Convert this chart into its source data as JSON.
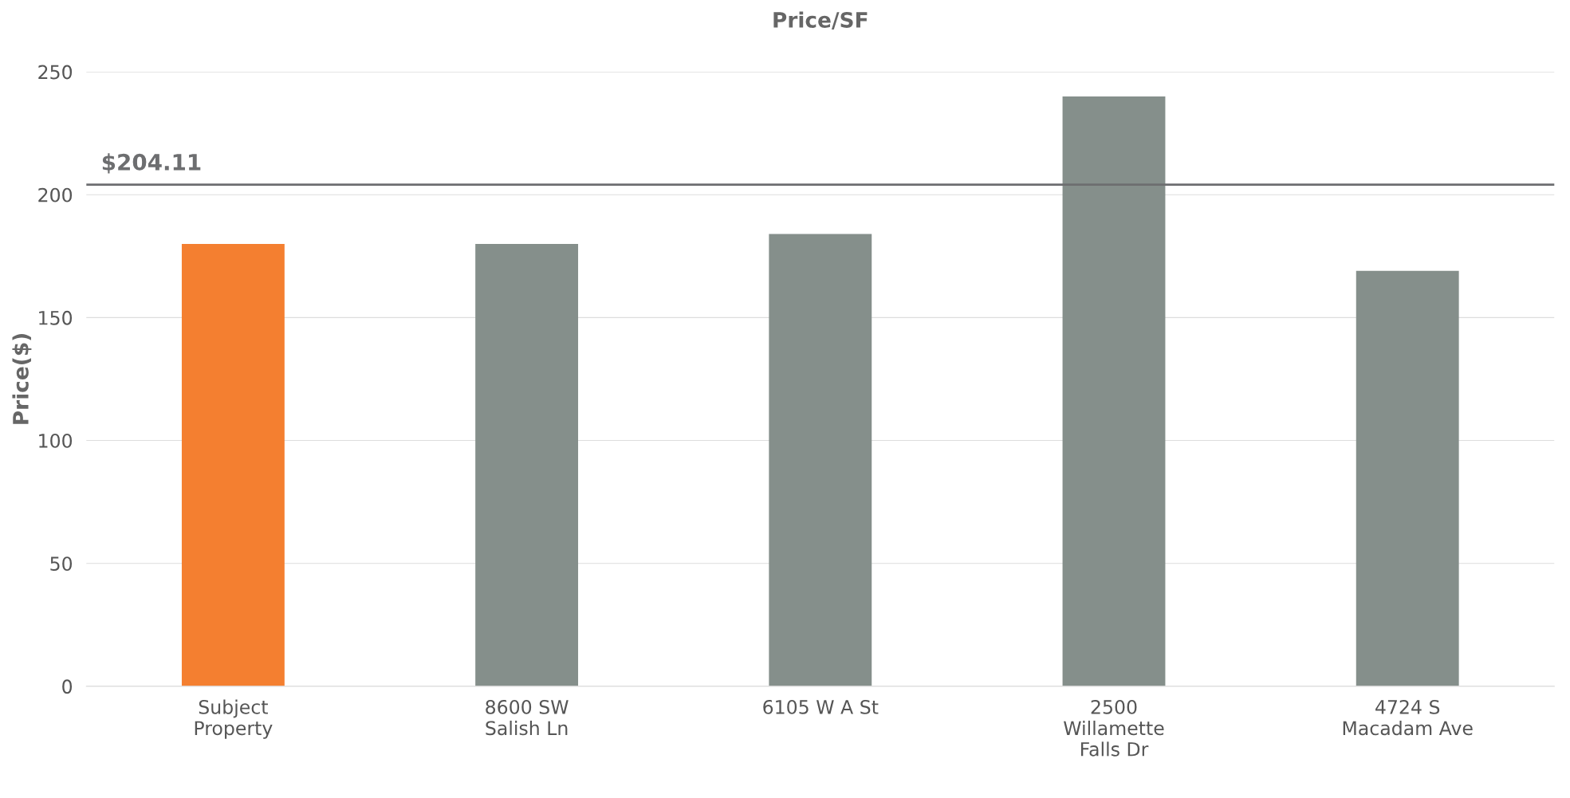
{
  "chart_data": {
    "type": "bar",
    "title": "Price/SF",
    "ylabel": "Price($)",
    "categories": [
      "Subject\nProperty",
      "8600 SW\nSalish Ln",
      "6105 W A St",
      "2500\nWillamette\nFalls Dr",
      "4724 S\nMacadam Ave"
    ],
    "values": [
      180,
      180,
      184,
      240,
      169
    ],
    "colors": [
      "#f47f30",
      "#858f8b",
      "#858f8b",
      "#858f8b",
      "#858f8b"
    ],
    "ylim": [
      0,
      250
    ],
    "yticks": [
      0,
      50,
      100,
      150,
      200,
      250
    ],
    "grid": "y",
    "ref_lines": [
      {
        "axis": "y",
        "value": 204.11,
        "label": "$204.11",
        "color": "#6d6e70"
      }
    ]
  }
}
